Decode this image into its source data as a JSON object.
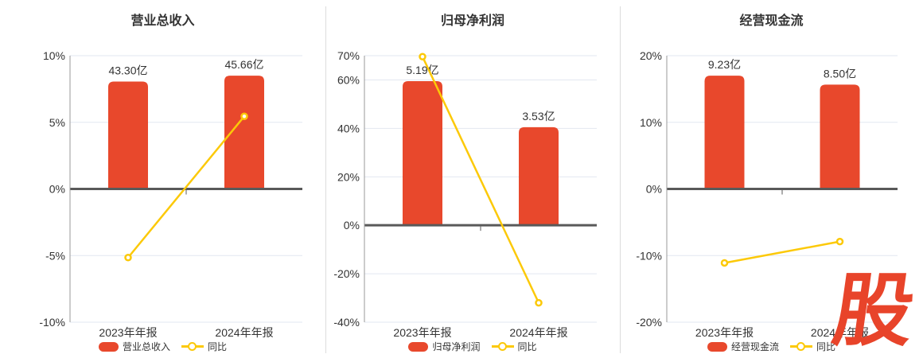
{
  "chart_data": [
    {
      "type": "bar",
      "title": "营业总收入",
      "categories": [
        "2023年年报",
        "2024年年报"
      ],
      "bar_series": {
        "name": "营业总收入",
        "unit": "亿",
        "values": [
          43.3,
          45.66
        ],
        "labels": [
          "43.30亿",
          "45.66亿"
        ]
      },
      "line_series": {
        "name": "同比",
        "unit": "%",
        "values": [
          -5.15,
          5.45
        ]
      },
      "y_axis": {
        "min": -10,
        "max": 10,
        "ticks": [
          10,
          5,
          0,
          -5,
          -10
        ],
        "tick_suffix": "%"
      },
      "legend": [
        "营业总收入",
        "同比"
      ],
      "legend_position": "bottom",
      "grid": true
    },
    {
      "type": "bar",
      "title": "归母净利润",
      "categories": [
        "2023年年报",
        "2024年年报"
      ],
      "bar_series": {
        "name": "归母净利润",
        "unit": "亿",
        "values": [
          5.19,
          3.53
        ],
        "labels": [
          "5.19亿",
          "3.53亿"
        ]
      },
      "line_series": {
        "name": "同比",
        "unit": "%",
        "values": [
          69.6,
          -32.0
        ]
      },
      "y_axis": {
        "min": -40,
        "max": 70,
        "ticks": [
          70,
          60,
          40,
          20,
          0,
          -20,
          -40
        ],
        "tick_suffix": "%"
      },
      "legend": [
        "归母净利润",
        "同比"
      ],
      "legend_position": "bottom",
      "grid": true
    },
    {
      "type": "bar",
      "title": "经营现金流",
      "categories": [
        "2023年年报",
        "2024年年报"
      ],
      "bar_series": {
        "name": "经营现金流",
        "unit": "亿",
        "values": [
          9.23,
          8.5
        ],
        "labels": [
          "9.23亿",
          "8.50亿"
        ]
      },
      "line_series": {
        "name": "同比",
        "unit": "%",
        "values": [
          -11.1,
          -7.9
        ]
      },
      "y_axis": {
        "min": -20,
        "max": 20,
        "ticks": [
          20,
          10,
          0,
          -10,
          -20
        ],
        "tick_suffix": "%"
      },
      "legend": [
        "经营现金流",
        "同比"
      ],
      "legend_position": "bottom",
      "grid": true
    }
  ],
  "watermark": {
    "text": "股",
    "color": "#e8442a"
  },
  "colors": {
    "bar": "#e8482c",
    "line": "#fcc908",
    "grid_line": "#e2e7f1",
    "axis_line": "#999999",
    "zero_line": "#595959",
    "text": "#333333",
    "divider": "#dcdcdc",
    "background": "#ffffff"
  }
}
